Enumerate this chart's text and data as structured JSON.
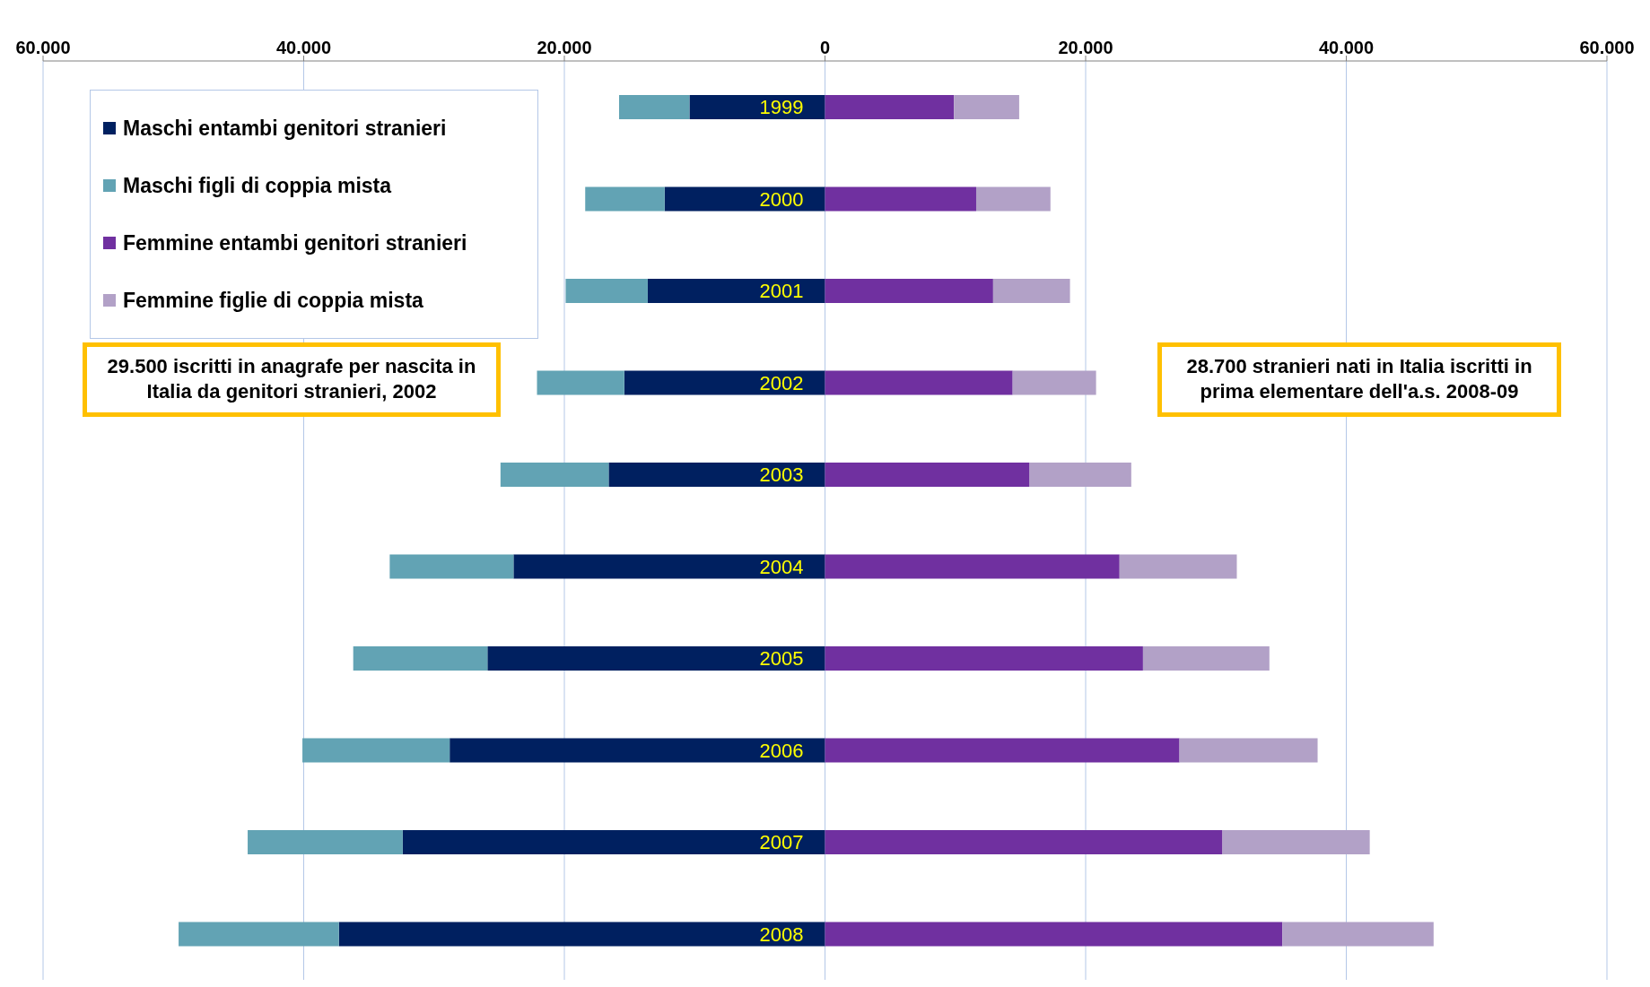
{
  "chart_data": {
    "type": "bar",
    "orientation": "horizontal",
    "stacked": true,
    "categories": [
      "1999",
      "2000",
      "2001",
      "2002",
      "2003",
      "2004",
      "2005",
      "2006",
      "2007",
      "2008"
    ],
    "series": [
      {
        "name": "Maschi entambi genitori stranieri",
        "color": "#002060",
        "values": [
          -10400,
          -12300,
          -13600,
          -15400,
          -16600,
          -23900,
          -25900,
          -28800,
          -32400,
          -37300
        ]
      },
      {
        "name": "Maschi figli di coppia mista",
        "color": "#62a3b4",
        "values": [
          -5400,
          -6100,
          -6300,
          -6700,
          -8300,
          -9500,
          -10300,
          -11300,
          -11900,
          -12300
        ]
      },
      {
        "name": "Femmine entambi genitori stranieri",
        "color": "#7030a0",
        "values": [
          9900,
          11600,
          12900,
          14400,
          15700,
          22600,
          24400,
          27200,
          30500,
          35100
        ]
      },
      {
        "name": "Femmine figlie di coppia mista",
        "color": "#b2a1c7",
        "values": [
          5000,
          5700,
          5900,
          6400,
          7800,
          9000,
          9700,
          10600,
          11300,
          11600
        ]
      }
    ],
    "xlim": [
      -60000,
      60000
    ],
    "xticks": [
      {
        "value": -60000,
        "label": "60.000"
      },
      {
        "value": -40000,
        "label": "40.000"
      },
      {
        "value": -20000,
        "label": "20.000"
      },
      0,
      {
        "value": 20000,
        "label": "20.000"
      },
      {
        "value": 40000,
        "label": "40.000"
      },
      {
        "value": 60000,
        "label": "60.000"
      }
    ],
    "grid": "x",
    "legend": "top left",
    "annotations": [
      "29.500  iscritti in anagrafe per nascita in Italia da genitori stranieri, 2002",
      "28.700 stranieri nati in Italia iscritti in prima elementare dell'a.s. 2008-09"
    ]
  }
}
